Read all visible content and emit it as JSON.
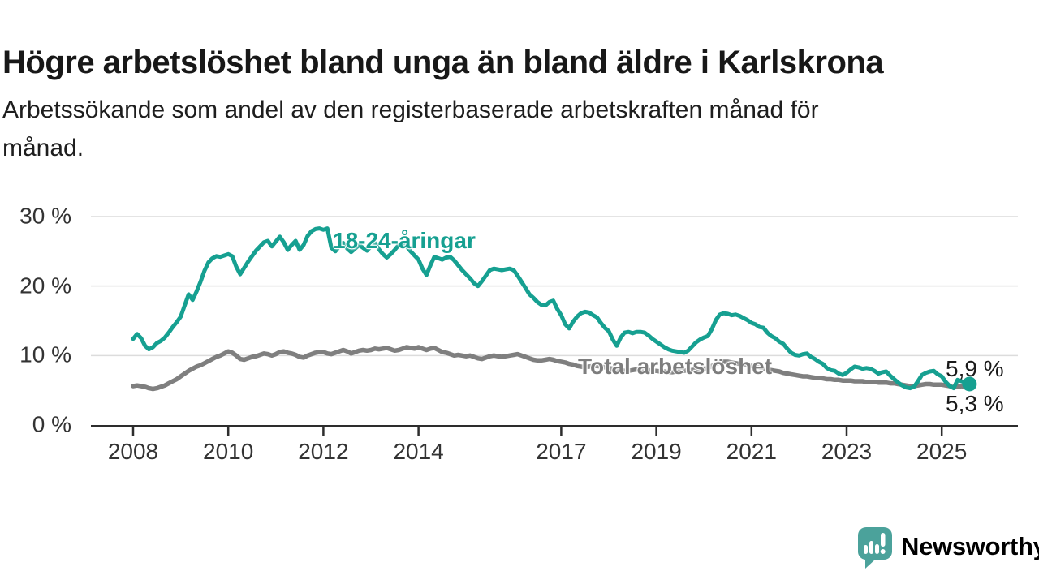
{
  "header": {
    "title": "Högre arbetslöshet bland unga än bland äldre i Karlskrona",
    "subtitle_line1": "Arbetssökande som andel av den registerbaserade arbetskraften månad för",
    "subtitle_line2": "månad."
  },
  "chart_data": {
    "type": "line",
    "grid": true,
    "x_start_year": 2008,
    "points_per_year": 12,
    "y_axis": {
      "range": [
        0,
        30
      ],
      "ticks": [
        {
          "label": "0 %",
          "value": 0
        },
        {
          "label": "10 %",
          "value": 10
        },
        {
          "label": "20 %",
          "value": 20
        },
        {
          "label": "30 %",
          "value": 30
        }
      ]
    },
    "x_axis": {
      "ticks": [
        {
          "label": "2008",
          "year": 2008
        },
        {
          "label": "2010",
          "year": 2010
        },
        {
          "label": "2012",
          "year": 2012
        },
        {
          "label": "2014",
          "year": 2014
        },
        {
          "label": "2017",
          "year": 2017
        },
        {
          "label": "2019",
          "year": 2019
        },
        {
          "label": "2021",
          "year": 2021
        },
        {
          "label": "2023",
          "year": 2023
        },
        {
          "label": "2025",
          "year": 2025
        }
      ]
    },
    "series": [
      {
        "name": "18-24-åringar",
        "label_text": "18-24-åringar",
        "color": "#16a091",
        "end_label": "5,9 %",
        "end_dot": true,
        "values": [
          12.4,
          13.1,
          12.5,
          11.4,
          10.9,
          11.2,
          11.8,
          12.1,
          12.6,
          13.3,
          14.1,
          14.8,
          15.6,
          17.2,
          18.8,
          18.0,
          19.2,
          20.6,
          22.2,
          23.4,
          24.0,
          24.3,
          24.2,
          24.4,
          24.6,
          24.3,
          22.8,
          21.7,
          22.6,
          23.5,
          24.3,
          25.1,
          25.7,
          26.3,
          26.5,
          25.7,
          26.4,
          27.1,
          26.3,
          25.2,
          25.9,
          26.5,
          25.2,
          25.9,
          27.2,
          27.9,
          28.2,
          28.3,
          28.1,
          28.3,
          25.5,
          25.0,
          25.7,
          26.2,
          25.4,
          24.9,
          25.4,
          25.9,
          25.5,
          25.1,
          25.7,
          26.2,
          25.3,
          24.6,
          24.1,
          24.6,
          25.2,
          25.9,
          26.2,
          25.7,
          25.0,
          24.4,
          23.8,
          22.5,
          21.6,
          23.0,
          24.2,
          24.0,
          23.8,
          24.1,
          24.2,
          23.7,
          23.0,
          22.3,
          21.7,
          21.1,
          20.4,
          20.0,
          20.7,
          21.5,
          22.3,
          22.5,
          22.4,
          22.3,
          22.4,
          22.5,
          22.3,
          21.5,
          20.6,
          19.7,
          18.8,
          18.3,
          17.7,
          17.3,
          17.2,
          17.7,
          17.9,
          16.7,
          15.8,
          14.5,
          13.9,
          14.9,
          15.6,
          16.1,
          16.3,
          16.2,
          15.8,
          15.5,
          14.7,
          14.0,
          13.5,
          12.3,
          11.4,
          12.6,
          13.3,
          13.4,
          13.2,
          13.4,
          13.4,
          13.3,
          12.9,
          12.4,
          12.0,
          11.6,
          11.2,
          10.9,
          10.7,
          10.6,
          10.5,
          10.4,
          10.7,
          11.3,
          11.9,
          12.3,
          12.6,
          12.8,
          13.8,
          15.1,
          15.9,
          16.1,
          16.0,
          15.8,
          15.9,
          15.7,
          15.4,
          15.1,
          14.7,
          14.5,
          14.1,
          14.0,
          13.3,
          12.8,
          12.5,
          12.0,
          11.7,
          11.0,
          10.4,
          10.1,
          10.0,
          10.2,
          10.3,
          9.8,
          9.5,
          9.1,
          8.8,
          8.2,
          7.9,
          7.8,
          7.4,
          7.2,
          7.5,
          8.0,
          8.4,
          8.3,
          8.1,
          8.2,
          8.1,
          7.8,
          7.4,
          7.6,
          7.7,
          7.1,
          6.6,
          6.1,
          5.7,
          5.4,
          5.3,
          5.5,
          6.3,
          7.2,
          7.5,
          7.7,
          7.8,
          7.3,
          7.0,
          6.2,
          5.6,
          5.3,
          6.5,
          6.3,
          6.1,
          5.9
        ]
      },
      {
        "name": "Total arbetslöshet",
        "label_text": "Total arbetslöshet",
        "color": "#7f7f7f",
        "end_label": "5,3 %",
        "end_dot": false,
        "values": [
          5.6,
          5.7,
          5.6,
          5.5,
          5.3,
          5.2,
          5.3,
          5.5,
          5.7,
          6.0,
          6.3,
          6.6,
          7.0,
          7.4,
          7.8,
          8.1,
          8.4,
          8.6,
          8.9,
          9.2,
          9.5,
          9.8,
          10.0,
          10.3,
          10.6,
          10.4,
          10.0,
          9.5,
          9.4,
          9.6,
          9.8,
          9.9,
          10.1,
          10.3,
          10.2,
          10.0,
          10.2,
          10.5,
          10.6,
          10.4,
          10.3,
          10.1,
          9.8,
          9.7,
          10.0,
          10.2,
          10.4,
          10.5,
          10.5,
          10.3,
          10.2,
          10.4,
          10.6,
          10.8,
          10.6,
          10.3,
          10.5,
          10.7,
          10.8,
          10.7,
          10.8,
          11.0,
          10.9,
          11.0,
          11.1,
          10.9,
          10.7,
          10.8,
          11.0,
          11.2,
          11.1,
          11.0,
          11.2,
          11.0,
          10.8,
          11.0,
          11.1,
          10.8,
          10.5,
          10.4,
          10.2,
          10.0,
          10.1,
          10.0,
          9.9,
          10.0,
          9.8,
          9.6,
          9.5,
          9.7,
          9.9,
          10.0,
          9.9,
          9.8,
          9.9,
          10.0,
          10.1,
          10.2,
          10.0,
          9.8,
          9.6,
          9.4,
          9.3,
          9.3,
          9.4,
          9.5,
          9.4,
          9.2,
          9.1,
          9.0,
          8.8,
          8.7,
          8.5,
          8.4,
          8.3,
          8.4,
          8.5,
          8.5,
          8.4,
          8.3,
          8.2,
          8.1,
          8.0,
          7.9,
          7.8,
          7.8,
          7.9,
          8.0,
          8.0,
          7.9,
          7.9,
          7.8,
          7.8,
          7.7,
          7.7,
          7.6,
          7.6,
          7.7,
          7.8,
          7.8,
          7.9,
          7.9,
          8.0,
          8.0,
          8.1,
          8.2,
          8.5,
          8.8,
          9.0,
          9.1,
          9.1,
          9.0,
          8.9,
          8.8,
          8.7,
          8.6,
          8.5,
          8.4,
          8.3,
          8.1,
          8.0,
          7.9,
          7.8,
          7.7,
          7.5,
          7.4,
          7.3,
          7.2,
          7.1,
          7.0,
          7.0,
          6.9,
          6.8,
          6.8,
          6.7,
          6.6,
          6.6,
          6.5,
          6.5,
          6.4,
          6.4,
          6.4,
          6.3,
          6.3,
          6.3,
          6.2,
          6.2,
          6.2,
          6.1,
          6.1,
          6.1,
          6.0,
          6.0,
          5.9,
          5.8,
          5.7,
          5.6,
          5.6,
          5.7,
          5.8,
          5.9,
          5.9,
          5.8,
          5.8,
          5.8,
          5.7,
          5.6,
          5.4,
          5.5,
          5.6,
          5.4,
          5.3
        ]
      }
    ],
    "colors": {
      "axis": "#2d2d2d",
      "gridline": "#dcdcdc",
      "axis_text": "#333333"
    }
  },
  "branding": {
    "logo_text": "Newsworthy",
    "logo_color": "#4ba29b"
  }
}
